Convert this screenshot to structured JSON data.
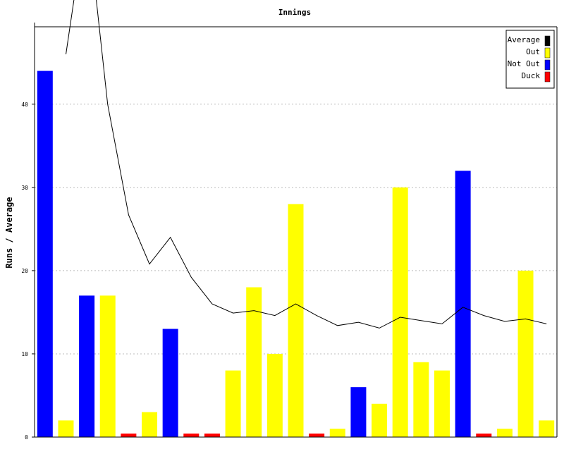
{
  "chart_data": {
    "type": "bar",
    "title": "Innings",
    "xlabel": "",
    "ylabel": "Runs / Average",
    "ylim": [
      0,
      49.3
    ],
    "yticks": [
      0,
      10,
      20,
      30,
      40
    ],
    "grid": true,
    "legend_position": "top-right",
    "legend": [
      {
        "label": "Average",
        "color": "#000000"
      },
      {
        "label": "Out",
        "color": "#ffff00"
      },
      {
        "label": "Not Out",
        "color": "#0000ff"
      },
      {
        "label": "Duck",
        "color": "#ff0000"
      }
    ],
    "innings": [
      {
        "runs": 44,
        "status": "notout"
      },
      {
        "runs": 2,
        "status": "out"
      },
      {
        "runs": 17,
        "status": "notout"
      },
      {
        "runs": 17,
        "status": "out"
      },
      {
        "runs": 0,
        "status": "duck"
      },
      {
        "runs": 3,
        "status": "out"
      },
      {
        "runs": 13,
        "status": "notout"
      },
      {
        "runs": 0,
        "status": "duck"
      },
      {
        "runs": 0,
        "status": "duck"
      },
      {
        "runs": 8,
        "status": "out"
      },
      {
        "runs": 18,
        "status": "out"
      },
      {
        "runs": 10,
        "status": "out"
      },
      {
        "runs": 28,
        "status": "out"
      },
      {
        "runs": 0,
        "status": "duck"
      },
      {
        "runs": 1,
        "status": "out"
      },
      {
        "runs": 6,
        "status": "notout"
      },
      {
        "runs": 4,
        "status": "out"
      },
      {
        "runs": 30,
        "status": "out"
      },
      {
        "runs": 9,
        "status": "out"
      },
      {
        "runs": 8,
        "status": "out"
      },
      {
        "runs": 32,
        "status": "notout"
      },
      {
        "runs": 0,
        "status": "duck"
      },
      {
        "runs": 1,
        "status": "out"
      },
      {
        "runs": 20,
        "status": "out"
      },
      {
        "runs": 2,
        "status": "out"
      }
    ],
    "average": [
      null,
      46,
      63,
      40,
      26.7,
      20.8,
      24,
      19.2,
      16,
      14.9,
      15.2,
      14.6,
      16,
      14.6,
      13.4,
      13.8,
      13.1,
      14.4,
      14,
      13.6,
      15.6,
      14.6,
      13.9,
      14.2,
      13.6
    ],
    "colors": {
      "out": "#ffff00",
      "notout": "#0000ff",
      "duck": "#ff0000",
      "average": "#000000"
    }
  }
}
